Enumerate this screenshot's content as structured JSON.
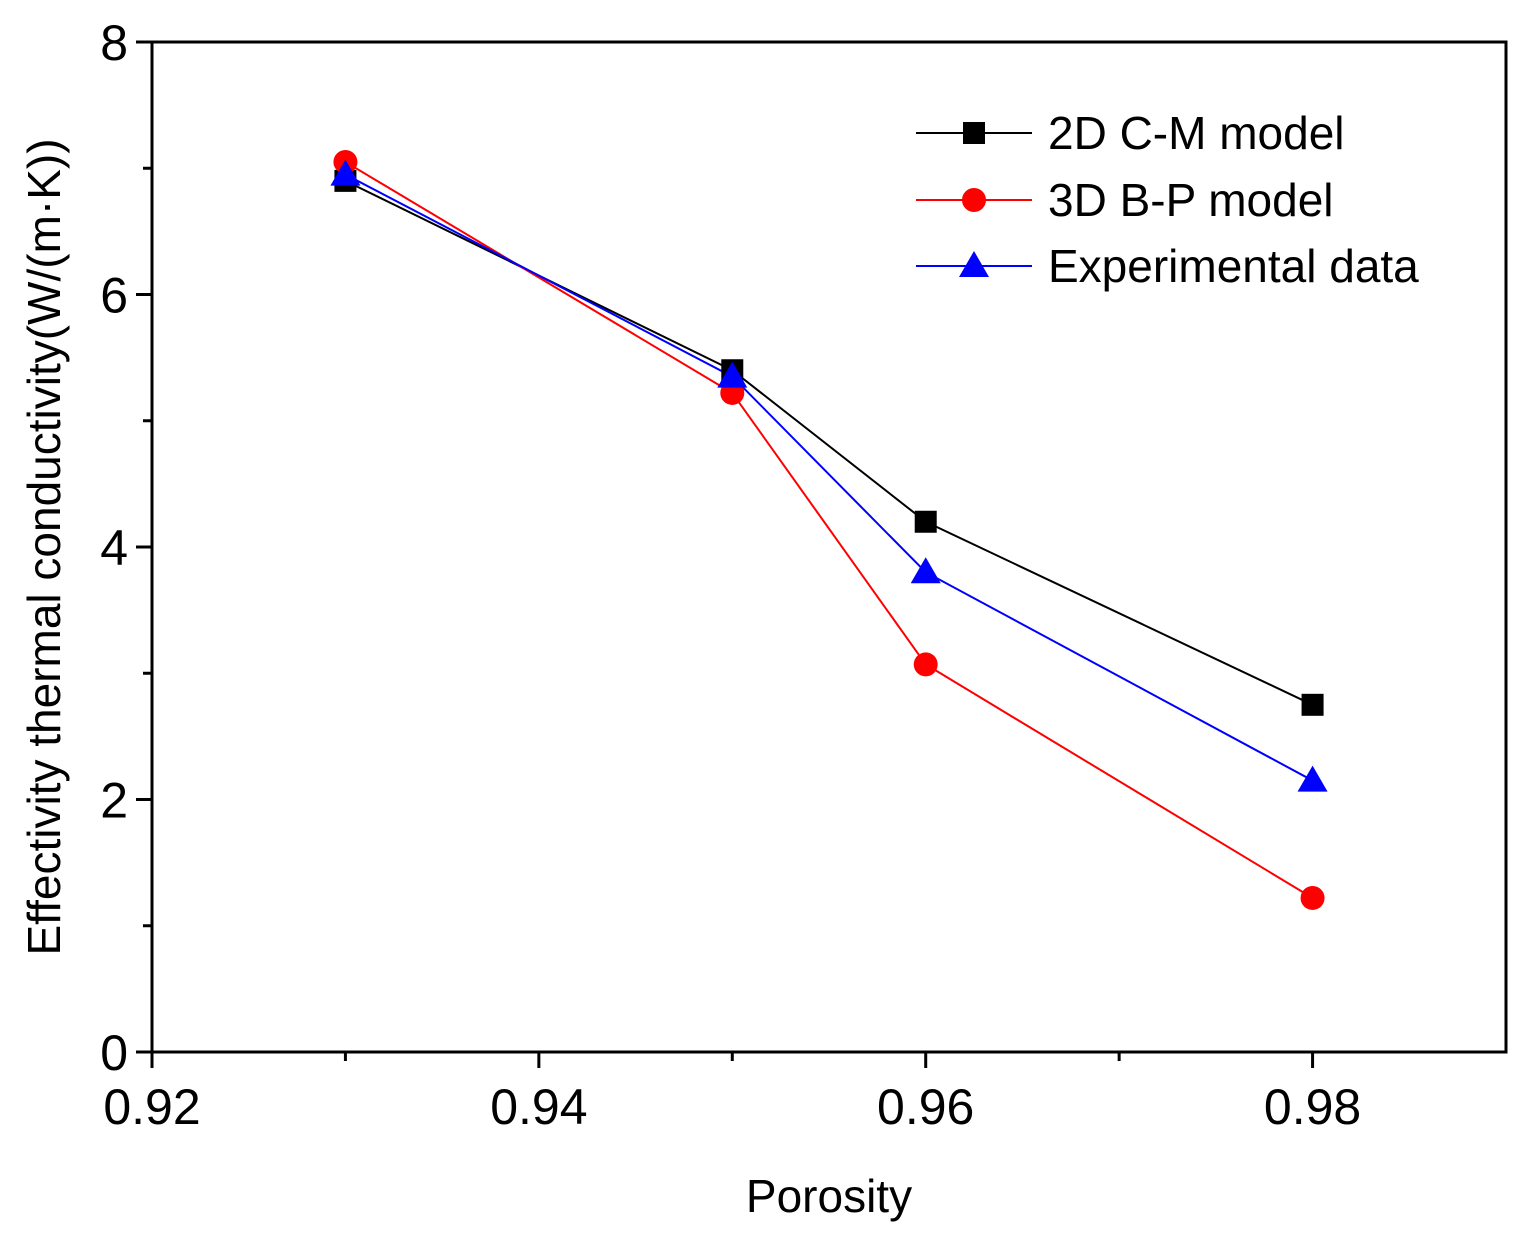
{
  "chart_data": {
    "type": "line",
    "title": "",
    "xlabel": "Porosity",
    "ylabel": "Effectivity thermal conductivity(W/(m·K))",
    "xlim": [
      0.92,
      0.99
    ],
    "ylim": [
      0,
      8
    ],
    "x_major_ticks": [
      0.92,
      0.94,
      0.96,
      0.98
    ],
    "x_tick_labels": [
      "0.92",
      "0.94",
      "0.96",
      "0.98"
    ],
    "x_minor_ticks": [
      0.93,
      0.95,
      0.97
    ],
    "y_major_ticks": [
      0,
      2,
      4,
      6,
      8
    ],
    "y_tick_labels": [
      "0",
      "2",
      "4",
      "6",
      "8"
    ],
    "y_minor_ticks": [
      1,
      3,
      5,
      7
    ],
    "grid": false,
    "legend_position": "top-right",
    "series": [
      {
        "name": "2D C-M model",
        "color": "#000000",
        "marker": "square",
        "x": [
          0.93,
          0.95,
          0.96,
          0.98
        ],
        "y": [
          6.9,
          5.4,
          4.2,
          2.75
        ]
      },
      {
        "name": "3D B-P model",
        "color": "#ff0000",
        "marker": "circle",
        "x": [
          0.93,
          0.95,
          0.96,
          0.98
        ],
        "y": [
          7.05,
          5.22,
          3.07,
          1.22
        ]
      },
      {
        "name": "Experimental data",
        "color": "#0000ff",
        "marker": "triangle",
        "x": [
          0.93,
          0.95,
          0.96,
          0.98
        ],
        "y": [
          6.95,
          5.35,
          3.8,
          2.15
        ]
      }
    ]
  }
}
